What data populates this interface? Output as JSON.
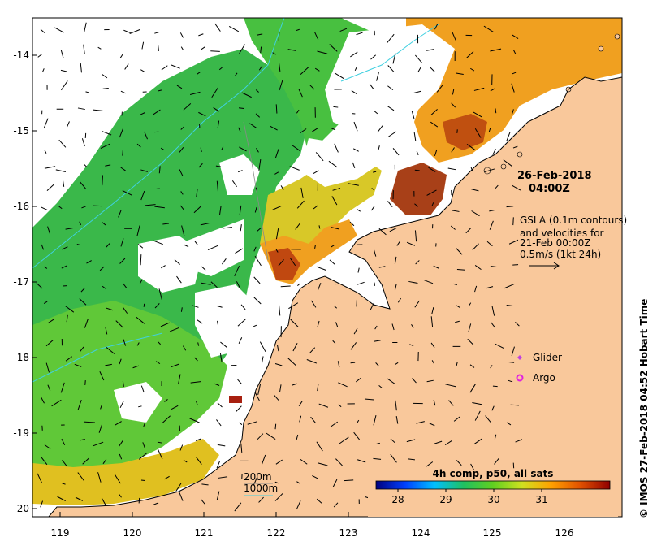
{
  "map": {
    "date_label": "26-Feb-2018",
    "time_label": "04:00Z",
    "gsla_note": [
      "GSLA (0.1m contours)",
      "and velocities for",
      "21-Feb 00:00Z",
      "0.5m/s (1kt 24h)"
    ],
    "legend": {
      "glider_label": "Glider",
      "argo_label": "Argo",
      "glider_color": "#c040e0",
      "argo_color": "#e020e0"
    },
    "depth_legend": {
      "d200_label": "200m",
      "d1000_label": "1000m",
      "d200_color": "#8a8a8a",
      "d1000_color": "#40d0e0"
    },
    "colorbar": {
      "title": "4h comp, p50, all sats",
      "ticks": [
        "28",
        "29",
        "30",
        "31"
      ],
      "stops": [
        "#00007f",
        "#0040ff",
        "#00c0ff",
        "#20c060",
        "#60d020",
        "#d0e020",
        "#ffa000",
        "#e05000",
        "#900000"
      ]
    },
    "credit": "© IMOS 27-Feb-2018 04:52 Hobart Time",
    "axes": {
      "lon_ticks": [
        "119",
        "120",
        "121",
        "122",
        "123",
        "124",
        "125",
        "126"
      ],
      "lat_ticks": [
        "-14",
        "-15",
        "-16",
        "-17",
        "-18",
        "-19",
        "-20"
      ]
    },
    "colors": {
      "land": "#f9c89b",
      "no_data": "#ffffff",
      "sst_green": "#3ab84a"
    }
  }
}
